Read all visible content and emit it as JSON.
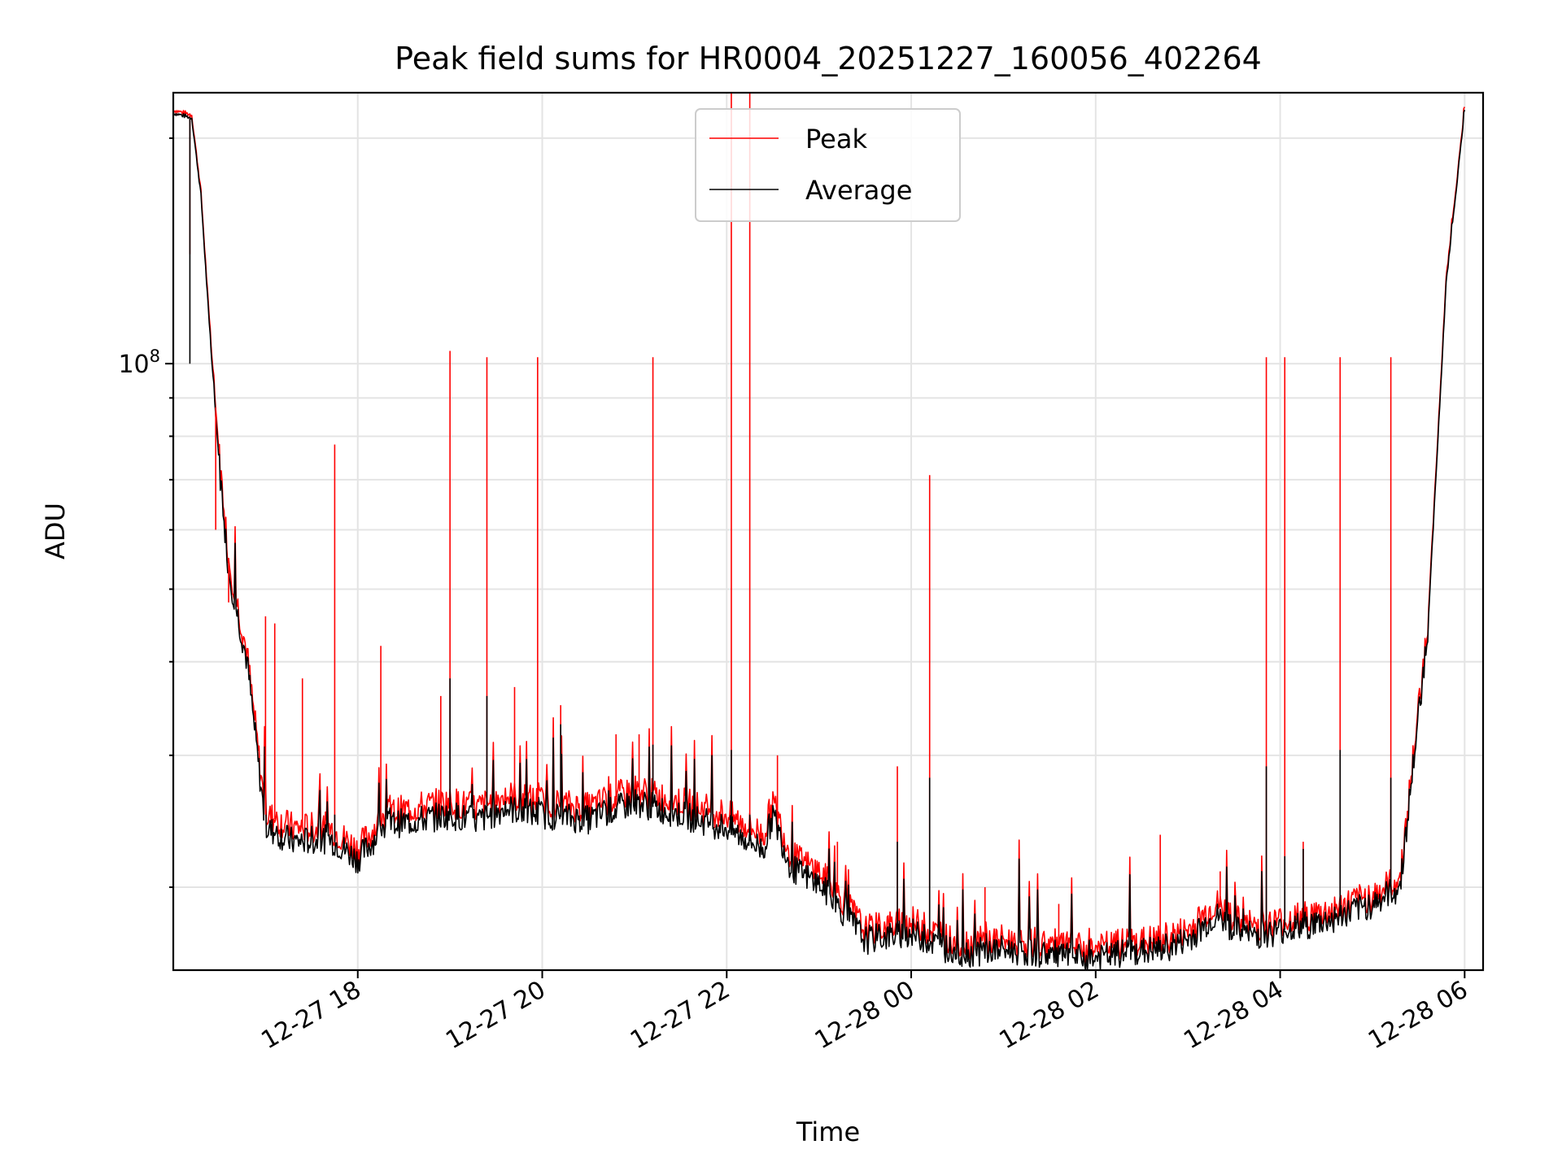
{
  "chart_data": {
    "type": "line",
    "title": "Peak field sums for HR0004_20251227_160056_402264",
    "xlabel": "Time",
    "ylabel": "ADU",
    "yscale": "log",
    "grid": true,
    "legend_position": "upper center",
    "x_unit": "hours since 2025-12-27 16:00",
    "xlim": [
      16.0,
      30.2
    ],
    "ylim": [
      15500000,
      230000000
    ],
    "x_ticks": [
      {
        "value": 18,
        "label": "12-27 18"
      },
      {
        "value": 20,
        "label": "12-27 20"
      },
      {
        "value": 22,
        "label": "12-27 22"
      },
      {
        "value": 24,
        "label": "12-28 00"
      },
      {
        "value": 26,
        "label": "12-28 02"
      },
      {
        "value": 28,
        "label": "12-28 04"
      },
      {
        "value": 30,
        "label": "12-28 06"
      }
    ],
    "y_major_tick": {
      "value": 100000000,
      "base": "10",
      "exponent": "8"
    },
    "y_minor_ticks": [
      20000000,
      30000000,
      40000000,
      50000000,
      60000000,
      70000000,
      80000000,
      90000000,
      200000000
    ],
    "series": [
      {
        "name": "Peak",
        "color": "#ff0000",
        "x": [
          16.0,
          16.2,
          16.3,
          16.4,
          16.5,
          16.6,
          16.8,
          17.0,
          17.3,
          17.7,
          18.0,
          18.3,
          18.6,
          19.0,
          19.3,
          19.6,
          20.0,
          20.5,
          21.0,
          21.5,
          22.0,
          22.4,
          22.5,
          22.7,
          23.0,
          23.3,
          23.5,
          24.0,
          24.5,
          25.0,
          25.5,
          25.9,
          26.3,
          26.7,
          27.0,
          27.3,
          27.6,
          27.8,
          28.0,
          28.5,
          29.0,
          29.3,
          29.6,
          29.8,
          30.0
        ],
        "y": [
          218000000,
          215000000,
          170000000,
          110000000,
          75000000,
          55000000,
          41000000,
          25000000,
          24000000,
          24000000,
          22500000,
          25000000,
          25500000,
          26000000,
          25500000,
          26500000,
          26000000,
          25500000,
          27000000,
          26000000,
          25000000,
          23500000,
          26000000,
          22000000,
          21000000,
          19000000,
          17500000,
          18000000,
          16800000,
          17000000,
          16800000,
          16500000,
          16800000,
          17000000,
          17500000,
          19000000,
          17800000,
          17800000,
          18000000,
          18500000,
          19500000,
          20500000,
          45000000,
          130000000,
          220000000
        ]
      },
      {
        "name": "Average",
        "color": "#000000",
        "x": [
          16.0,
          16.2,
          16.3,
          16.4,
          16.5,
          16.6,
          16.8,
          17.0,
          17.3,
          17.7,
          18.0,
          18.3,
          18.6,
          19.0,
          19.3,
          19.6,
          20.0,
          20.5,
          21.0,
          21.5,
          22.0,
          22.4,
          22.5,
          22.7,
          23.0,
          23.3,
          23.5,
          24.0,
          24.5,
          25.0,
          25.5,
          25.9,
          26.3,
          26.7,
          27.0,
          27.3,
          27.6,
          27.8,
          28.0,
          28.5,
          29.0,
          29.3,
          29.6,
          29.8,
          30.0
        ],
        "y": [
          216000000,
          213000000,
          168000000,
          108000000,
          73000000,
          53000000,
          40000000,
          24000000,
          23000000,
          23200000,
          21800000,
          24200000,
          24500000,
          25000000,
          24500000,
          25500000,
          25000000,
          24600000,
          26000000,
          25000000,
          24000000,
          22500000,
          25000000,
          21200000,
          20200000,
          18300000,
          17000000,
          17400000,
          16300000,
          16500000,
          16300000,
          16000000,
          16300000,
          16500000,
          17000000,
          18300000,
          17300000,
          17300000,
          17500000,
          18000000,
          19000000,
          20000000,
          44000000,
          128000000,
          218000000
        ]
      }
    ],
    "peak_spikes": [
      {
        "x": 16.18,
        "y": 140000000
      },
      {
        "x": 16.46,
        "y": 60000000
      },
      {
        "x": 16.6,
        "y": 48000000
      },
      {
        "x": 17.0,
        "y": 46000000
      },
      {
        "x": 17.1,
        "y": 45000000
      },
      {
        "x": 17.4,
        "y": 38000000
      },
      {
        "x": 17.75,
        "y": 78000000
      },
      {
        "x": 18.25,
        "y": 42000000
      },
      {
        "x": 18.9,
        "y": 36000000
      },
      {
        "x": 19.0,
        "y": 104000000
      },
      {
        "x": 19.4,
        "y": 102000000
      },
      {
        "x": 19.7,
        "y": 37000000
      },
      {
        "x": 19.95,
        "y": 102000000
      },
      {
        "x": 20.2,
        "y": 35000000
      },
      {
        "x": 20.8,
        "y": 32000000
      },
      {
        "x": 21.05,
        "y": 32000000
      },
      {
        "x": 21.2,
        "y": 102000000
      },
      {
        "x": 22.05,
        "y": 230000000
      },
      {
        "x": 22.25,
        "y": 230000000
      },
      {
        "x": 22.55,
        "y": 30000000
      },
      {
        "x": 23.2,
        "y": 23000000
      },
      {
        "x": 23.85,
        "y": 29000000
      },
      {
        "x": 24.2,
        "y": 71000000
      },
      {
        "x": 24.8,
        "y": 20000000
      },
      {
        "x": 25.6,
        "y": 19000000
      },
      {
        "x": 26.7,
        "y": 23500000
      },
      {
        "x": 27.35,
        "y": 21000000
      },
      {
        "x": 27.85,
        "y": 102000000
      },
      {
        "x": 28.05,
        "y": 102000000
      },
      {
        "x": 28.25,
        "y": 23000000
      },
      {
        "x": 28.65,
        "y": 102000000
      },
      {
        "x": 29.2,
        "y": 102000000
      }
    ],
    "average_spikes": [
      {
        "x": 16.18,
        "y": 100000000
      },
      {
        "x": 17.75,
        "y": 25000000
      },
      {
        "x": 19.0,
        "y": 38000000
      },
      {
        "x": 19.4,
        "y": 36000000
      },
      {
        "x": 20.2,
        "y": 33000000
      },
      {
        "x": 21.2,
        "y": 31000000
      },
      {
        "x": 22.05,
        "y": 30500000
      },
      {
        "x": 22.25,
        "y": 25000000
      },
      {
        "x": 23.85,
        "y": 23000000
      },
      {
        "x": 24.2,
        "y": 28000000
      },
      {
        "x": 27.85,
        "y": 29000000
      },
      {
        "x": 28.05,
        "y": 22000000
      },
      {
        "x": 28.25,
        "y": 22500000
      },
      {
        "x": 28.65,
        "y": 30500000
      },
      {
        "x": 29.2,
        "y": 28000000
      }
    ]
  }
}
